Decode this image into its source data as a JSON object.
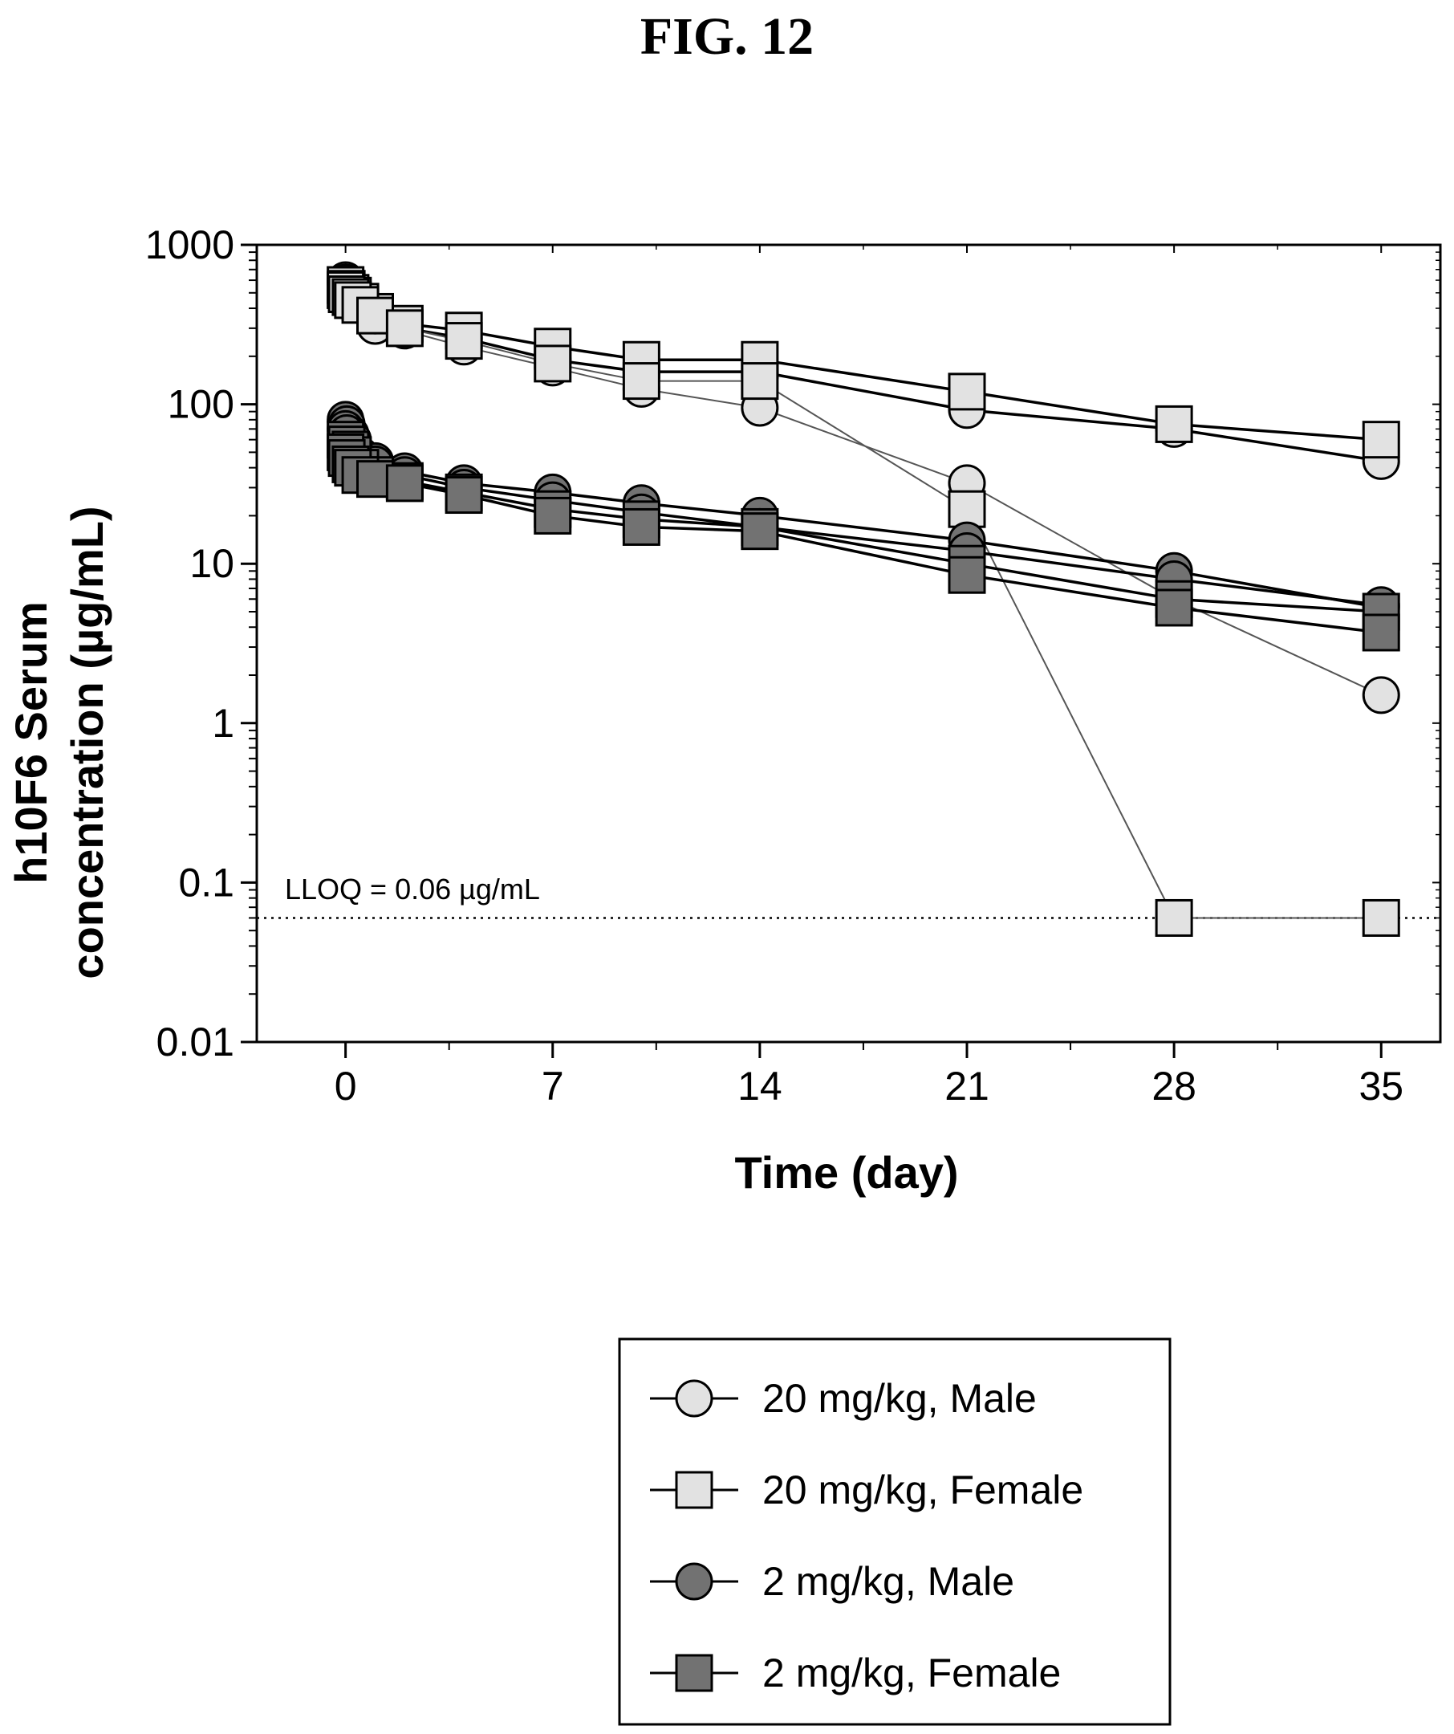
{
  "figure_label": "FIG. 12",
  "chart_data": {
    "type": "line",
    "title": "",
    "xlabel": "Time (day)",
    "ylabel_line1": "h10F6 Serum",
    "ylabel_line2": "concentration (µg/mL)",
    "yscale": "log",
    "xlim": [
      -3,
      37
    ],
    "ylim": [
      0.01,
      1000
    ],
    "xticks": [
      0,
      7,
      14,
      21,
      28,
      35
    ],
    "xtick_labels": [
      "0",
      "7",
      "14",
      "21",
      "28",
      "35"
    ],
    "yticks": [
      1000,
      100,
      10,
      1,
      0.1,
      0.01
    ],
    "ytick_labels": [
      "1000",
      "100",
      "10",
      "1",
      "0.1",
      "0.01"
    ],
    "reference_line": {
      "y": 0.06,
      "label": "LLOQ = 0.06 µg/mL",
      "style": "dotted"
    },
    "legend": [
      {
        "label": "20 mg/kg, Male",
        "marker": "circle",
        "fill": "#e2e2e2"
      },
      {
        "label": "20 mg/kg, Female",
        "marker": "square",
        "fill": "#e2e2e2"
      },
      {
        "label": "2 mg/kg, Male",
        "marker": "circle",
        "fill": "#727272"
      },
      {
        "label": "2 mg/kg, Female",
        "marker": "square",
        "fill": "#727272"
      }
    ],
    "legend_position": "below plot, right",
    "colors": {
      "light_fill": "#e2e2e2",
      "dark_fill": "#727272",
      "stroke": "#000000",
      "thin_line": "#555555"
    },
    "series": [
      {
        "group": "20 mg/kg, Male",
        "marker": "circle",
        "fill": "#e2e2e2",
        "x": [
          0,
          0.04,
          0.17,
          0.25,
          0.5,
          1,
          2,
          4,
          7,
          10,
          14,
          21,
          28,
          35
        ],
        "y": [
          600,
          560,
          520,
          470,
          430,
          310,
          290,
          230,
          170,
          125,
          95,
          32,
          6,
          1.5
        ]
      },
      {
        "group": "20 mg/kg, Male",
        "marker": "circle",
        "fill": "#e2e2e2",
        "x": [
          0,
          0.04,
          0.17,
          0.25,
          0.5,
          1,
          2,
          4,
          7,
          10,
          14,
          21,
          28,
          35
        ],
        "y": [
          580,
          540,
          500,
          460,
          420,
          360,
          300,
          260,
          190,
          160,
          160,
          92,
          70,
          44
        ]
      },
      {
        "group": "20 mg/kg, Female",
        "marker": "square",
        "fill": "#e2e2e2",
        "x": [
          0,
          0.04,
          0.17,
          0.25,
          0.5,
          1,
          2,
          4,
          7,
          10,
          14,
          21,
          28,
          35
        ],
        "y": [
          560,
          530,
          500,
          480,
          440,
          380,
          320,
          290,
          230,
          190,
          190,
          120,
          75,
          60
        ]
      },
      {
        "group": "20 mg/kg, Female",
        "marker": "square",
        "fill": "#e2e2e2",
        "x": [
          0,
          0.04,
          0.17,
          0.25,
          0.5,
          1,
          2,
          4,
          7,
          10,
          14,
          21,
          28,
          35
        ],
        "y": [
          520,
          490,
          470,
          450,
          420,
          360,
          300,
          250,
          180,
          140,
          140,
          22,
          0.06,
          0.06
        ]
      },
      {
        "group": "2 mg/kg, Male",
        "marker": "circle",
        "fill": "#727272",
        "x": [
          0,
          0.04,
          0.17,
          0.25,
          0.5,
          1,
          2,
          4,
          7,
          10,
          14,
          21,
          28,
          35
        ],
        "y": [
          80,
          75,
          65,
          60,
          48,
          44,
          38,
          32,
          28,
          24,
          20,
          14,
          9,
          5.3
        ]
      },
      {
        "group": "2 mg/kg, Male",
        "marker": "circle",
        "fill": "#727272",
        "x": [
          0,
          0.04,
          0.17,
          0.25,
          0.5,
          1,
          2,
          4,
          7,
          10,
          14,
          21,
          28,
          35
        ],
        "y": [
          70,
          66,
          58,
          52,
          45,
          42,
          36,
          30,
          25,
          21,
          17,
          12,
          8,
          5.5
        ]
      },
      {
        "group": "2 mg/kg, Female",
        "marker": "square",
        "fill": "#727272",
        "x": [
          0,
          0.04,
          0.17,
          0.25,
          0.5,
          1,
          2,
          4,
          7,
          10,
          14,
          21,
          28,
          35
        ],
        "y": [
          60,
          56,
          52,
          48,
          40,
          36,
          33,
          28,
          22,
          19,
          17,
          10,
          6,
          5
        ]
      },
      {
        "group": "2 mg/kg, Female",
        "marker": "square",
        "fill": "#727272",
        "x": [
          0,
          0.04,
          0.17,
          0.25,
          0.5,
          1,
          2,
          4,
          7,
          10,
          14,
          21,
          28,
          35
        ],
        "y": [
          50,
          46,
          42,
          40,
          36,
          34,
          32,
          27,
          20,
          17,
          16,
          8.5,
          5.3,
          3.7
        ]
      }
    ]
  }
}
